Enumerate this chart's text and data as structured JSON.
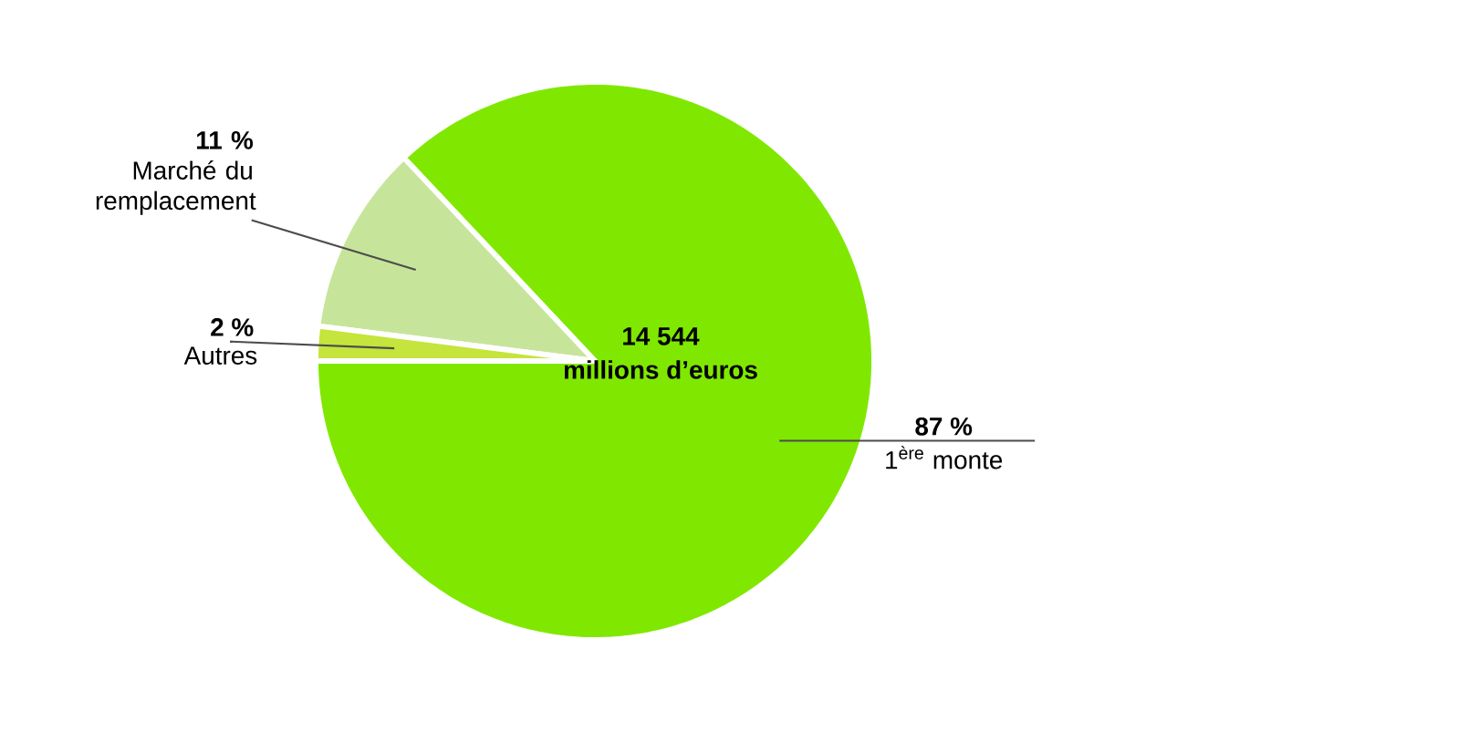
{
  "chart_data": {
    "type": "pie",
    "categories": [
      "1$^{ère}$ monte",
      "Marché du remplacement",
      "Autres"
    ],
    "values": [
      87,
      11,
      2
    ],
    "colors": [
      "#80e800",
      "#c6e59a",
      "#c5e43c"
    ],
    "value_labels": [
      "87 %",
      "11 %",
      "2 %"
    ],
    "annotations": [
      "14 544",
      "millions d’euros"
    ]
  }
}
